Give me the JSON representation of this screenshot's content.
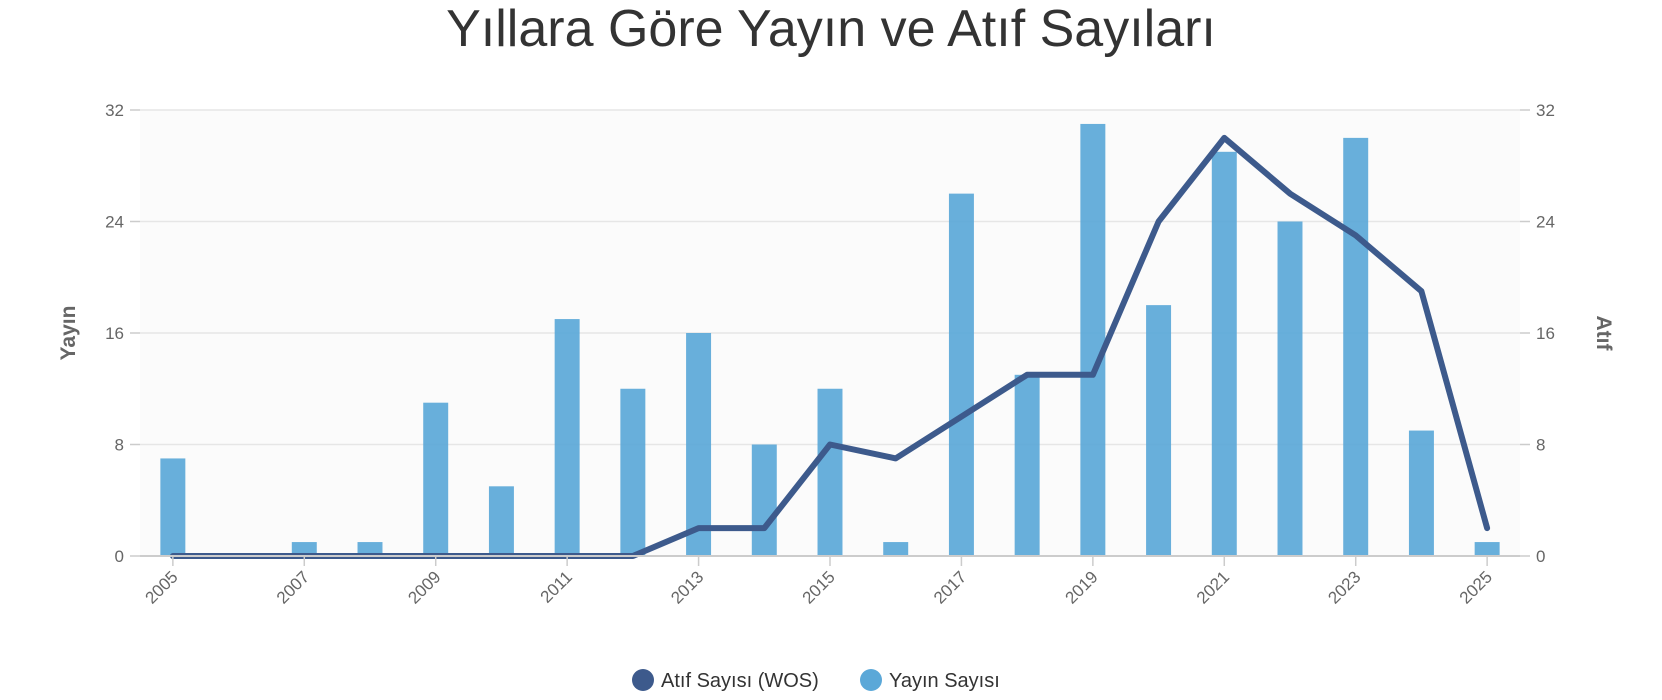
{
  "chart_data": {
    "type": "bar",
    "title": "Yıllara Göre Yayın ve Atıf Sayıları",
    "categories": [
      "2005",
      "2006",
      "2007",
      "2008",
      "2009",
      "2010",
      "2011",
      "2012",
      "2013",
      "2014",
      "2015",
      "2016",
      "2017",
      "2018",
      "2019",
      "2020",
      "2021",
      "2022",
      "2023",
      "2024",
      "2025"
    ],
    "x_tick_labels": [
      "2005",
      "2007",
      "2009",
      "2011",
      "2013",
      "2015",
      "2017",
      "2019",
      "2021",
      "2023",
      "2025"
    ],
    "ylabel_left": "Yayın",
    "ylabel_right": "Atıf",
    "ylim_left": [
      0,
      32
    ],
    "ylim_right": [
      0,
      32
    ],
    "yticks_left": [
      0,
      8,
      16,
      24,
      32
    ],
    "yticks_right": [
      0,
      8,
      16,
      24,
      32
    ],
    "grid": true,
    "legend_position": "bottom",
    "series": [
      {
        "name": "Atıf Sayısı (WOS)",
        "type": "line",
        "axis": "right",
        "color": "#3d5a8c",
        "values": [
          0,
          0,
          0,
          0,
          0,
          0,
          0,
          0,
          2,
          2,
          8,
          7,
          10,
          13,
          13,
          24,
          30,
          26,
          23,
          19,
          2
        ]
      },
      {
        "name": "Yayın Sayısı",
        "type": "bar",
        "axis": "left",
        "color": "#5ba8d8",
        "values": [
          7,
          0,
          1,
          1,
          11,
          5,
          17,
          12,
          16,
          8,
          12,
          1,
          26,
          13,
          31,
          18,
          29,
          24,
          30,
          9,
          1
        ]
      }
    ]
  }
}
